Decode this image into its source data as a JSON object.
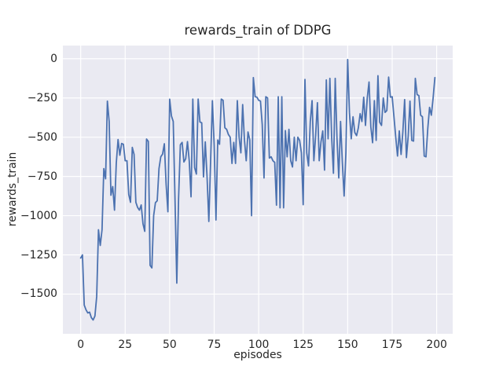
{
  "chart_data": {
    "type": "line",
    "title": "rewards_train of DDPG",
    "xlabel": "episodes",
    "ylabel": "rewards_train",
    "grid": true,
    "legend": null,
    "xlim": [
      -10,
      209
    ],
    "ylim": [
      -1753,
      84
    ],
    "xticks": {
      "values": [
        0,
        25,
        50,
        75,
        100,
        125,
        150,
        175,
        200
      ],
      "labels": [
        "0",
        "25",
        "50",
        "75",
        "100",
        "125",
        "150",
        "175",
        "200"
      ]
    },
    "yticks": {
      "values": [
        0,
        -250,
        -500,
        -750,
        -1000,
        -1250,
        -1500
      ],
      "labels": [
        "0",
        "−250",
        "−500",
        "−750",
        "−1000",
        "−1250",
        "−1500"
      ]
    },
    "styles": {
      "line_color": "#4c72b0",
      "line_width": 1.8,
      "axes_background": "#eaeaf2",
      "grid_color": "#ffffff",
      "grid_width": 1.2,
      "figure_background": "#ffffff",
      "text_color": "#262626"
    },
    "series": [
      {
        "name": "rewards_train",
        "x": [
          0,
          1,
          2,
          3,
          4,
          5,
          6,
          7,
          8,
          9,
          10,
          11,
          12,
          13,
          14,
          15,
          16,
          17,
          18,
          19,
          20,
          21,
          22,
          23,
          24,
          25,
          26,
          27,
          28,
          29,
          30,
          31,
          32,
          33,
          34,
          35,
          36,
          37,
          38,
          39,
          40,
          41,
          42,
          43,
          44,
          45,
          46,
          47,
          48,
          49,
          50,
          51,
          52,
          53,
          54,
          55,
          56,
          57,
          58,
          59,
          60,
          61,
          62,
          63,
          64,
          65,
          66,
          67,
          68,
          69,
          70,
          71,
          72,
          73,
          74,
          75,
          76,
          77,
          78,
          79,
          80,
          81,
          82,
          83,
          84,
          85,
          86,
          87,
          88,
          89,
          90,
          91,
          92,
          93,
          94,
          95,
          96,
          97,
          98,
          99,
          100,
          101,
          102,
          103,
          104,
          105,
          106,
          107,
          108,
          109,
          110,
          111,
          112,
          113,
          114,
          115,
          116,
          117,
          118,
          119,
          120,
          121,
          122,
          123,
          124,
          125,
          126,
          127,
          128,
          129,
          130,
          131,
          132,
          133,
          134,
          135,
          136,
          137,
          138,
          139,
          140,
          141,
          142,
          143,
          144,
          145,
          146,
          147,
          148,
          149,
          150,
          151,
          152,
          153,
          154,
          155,
          156,
          157,
          158,
          159,
          160,
          161,
          162,
          163,
          164,
          165,
          166,
          167,
          168,
          169,
          170,
          171,
          172,
          173,
          174,
          175,
          176,
          177,
          178,
          179,
          180,
          181,
          182,
          183,
          184,
          185,
          186,
          187,
          188,
          189,
          190,
          191,
          192,
          193,
          194,
          195,
          196,
          197,
          198,
          199
        ],
        "y": [
          -1270,
          -1250,
          -1570,
          -1600,
          -1620,
          -1615,
          -1650,
          -1665,
          -1640,
          -1515,
          -1090,
          -1190,
          -1090,
          -700,
          -765,
          -270,
          -400,
          -870,
          -815,
          -965,
          -665,
          -515,
          -615,
          -540,
          -545,
          -650,
          -650,
          -865,
          -915,
          -565,
          -610,
          -915,
          -948,
          -965,
          -932,
          -1052,
          -1100,
          -512,
          -527,
          -1317,
          -1333,
          -1000,
          -917,
          -905,
          -700,
          -625,
          -608,
          -542,
          -800,
          -975,
          -258,
          -365,
          -400,
          -898,
          -1430,
          -890,
          -548,
          -533,
          -658,
          -638,
          -528,
          -652,
          -880,
          -257,
          -693,
          -735,
          -257,
          -403,
          -408,
          -753,
          -530,
          -753,
          -1037,
          -652,
          -268,
          -552,
          -1028,
          -518,
          -545,
          -257,
          -265,
          -440,
          -450,
          -483,
          -500,
          -667,
          -533,
          -667,
          -267,
          -500,
          -600,
          -292,
          -517,
          -650,
          -467,
          -517,
          -1000,
          -120,
          -242,
          -245,
          -265,
          -270,
          -420,
          -760,
          -242,
          -250,
          -633,
          -625,
          -650,
          -660,
          -933,
          -242,
          -950,
          -242,
          -950,
          -458,
          -625,
          -450,
          -650,
          -690,
          -500,
          -650,
          -500,
          -520,
          -600,
          -930,
          -132,
          -600,
          -683,
          -400,
          -267,
          -650,
          -490,
          -280,
          -650,
          -530,
          -460,
          -710,
          -135,
          -510,
          -125,
          -500,
          -730,
          -125,
          -510,
          -760,
          -400,
          -660,
          -875,
          -600,
          -5,
          -345,
          -510,
          -370,
          -470,
          -490,
          -440,
          -350,
          -400,
          -245,
          -425,
          -250,
          -148,
          -433,
          -535,
          -267,
          -520,
          -108,
          -405,
          -425,
          -250,
          -342,
          -330,
          -117,
          -245,
          -242,
          -370,
          -500,
          -620,
          -460,
          -610,
          -465,
          -260,
          -630,
          -495,
          -270,
          -520,
          -525,
          -125,
          -228,
          -235,
          -360,
          -370,
          -620,
          -625,
          -445,
          -310,
          -360,
          -250,
          -120
        ]
      }
    ]
  }
}
